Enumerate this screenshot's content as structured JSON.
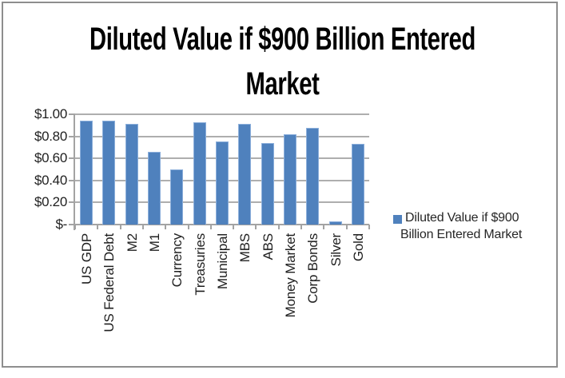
{
  "title": {
    "line1": "Diluted Value if $900 Billion Entered",
    "line2": "Market"
  },
  "legend": {
    "line1": "Diluted Value if $900",
    "line2": "Billion Entered Market",
    "marker_color": "#4f81bd"
  },
  "y_axis": {
    "labels": [
      "$1.00",
      "$0.80",
      "$0.60",
      "$0.40",
      "$0.20",
      "$-"
    ],
    "values": [
      1.0,
      0.8,
      0.6,
      0.4,
      0.2,
      0
    ]
  },
  "colors": {
    "bar_fill": "#4f81bd",
    "bar_border": "#8cafdb",
    "gridline": "#aeaeae",
    "axis": "#a3a3a3",
    "label_text": "#1f1f1f",
    "title_text": "#000000",
    "frame_border": "#8e8e8e",
    "background": "#ffffff"
  },
  "chart_data": {
    "type": "bar",
    "title": "Diluted Value if $900 Billion Entered Market",
    "categories": [
      "US GDP",
      "US Federal Debt",
      "M2",
      "M1",
      "Currency",
      "Treasuries",
      "Municipal",
      "MBS",
      "ABS",
      "Money Market",
      "Corp Bonds",
      "Silver",
      "Gold"
    ],
    "series": [
      {
        "name": "Diluted Value if $900 Billion Entered Market",
        "color": "#4f81bd",
        "values": [
          0.94,
          0.94,
          0.91,
          0.66,
          0.5,
          0.93,
          0.75,
          0.91,
          0.74,
          0.82,
          0.88,
          0.03,
          0.73
        ]
      }
    ],
    "xlabel": "",
    "ylabel": "",
    "ylim": [
      0,
      1.0
    ],
    "ytick_step": 0.2,
    "ytick_labels_bottom_to_top": [
      "$-",
      "$0.20",
      "$0.40",
      "$0.60",
      "$0.80",
      "$1.00"
    ],
    "grid": true,
    "legend_position": "right"
  }
}
